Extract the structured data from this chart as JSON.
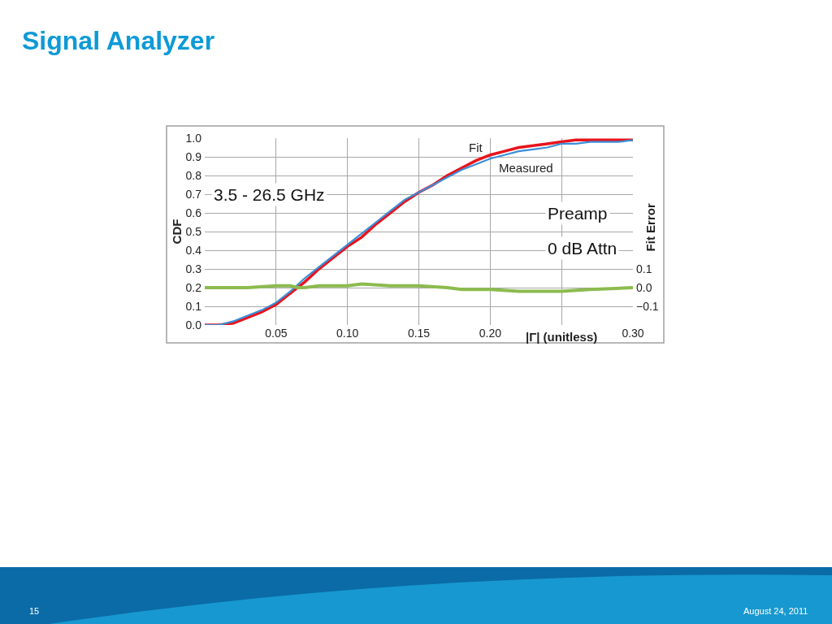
{
  "chart_data": {
    "type": "line",
    "title": "Signal Analyzer",
    "xlabel": "|Γ| (unitless)",
    "ylabel": "CDF",
    "y2label": "Fit Error",
    "annotations": [
      "3.5 - 26.5 GHz",
      "Preamp",
      "0 dB Attn",
      "15",
      "August 24, 2011"
    ],
    "xlim": [
      0,
      0.3
    ],
    "xticks": [
      0.05,
      {
        "value": 0.1,
        "label": "0.10"
      },
      0.15,
      {
        "value": 0.2,
        "label": "0.20"
      },
      {
        "value": 0.25,
        "label": null
      },
      {
        "value": 0.3,
        "label": "0.30"
      }
    ],
    "ylim": [
      0,
      1
    ],
    "yticks": [
      {
        "value": 0,
        "label": "0.0"
      },
      0.1,
      0.2,
      0.3,
      0.4,
      0.5,
      0.6,
      0.7,
      0.8,
      0.9,
      {
        "value": 1,
        "label": "1.0"
      }
    ],
    "y2lim": [
      -0.2,
      0.8
    ],
    "y2ticks": [
      {
        "value": -0.1,
        "label": "−0.1"
      },
      {
        "value": 0,
        "label": "0.0"
      },
      0.1
    ],
    "grid": true,
    "legend": false,
    "marker": "none",
    "line_style": "solid",
    "series": [
      {
        "name": "Fit",
        "color": "#e8141c",
        "x": [
          0,
          0.01,
          0.02,
          0.03,
          0.04,
          0.05,
          0.06,
          0.07,
          0.08,
          0.09,
          0.1,
          0.11,
          0.12,
          0.13,
          0.14,
          0.15,
          0.16,
          0.17,
          0.18,
          0.19,
          0.2,
          0.21,
          0.22,
          0.23,
          0.24,
          0.25,
          0.26,
          0.27,
          0.28,
          0.29,
          0.3
        ],
        "values": [
          0,
          0,
          0.01,
          0.04,
          0.07,
          0.11,
          0.17,
          0.23,
          0.3,
          0.36,
          0.42,
          0.47,
          0.54,
          0.6,
          0.66,
          0.71,
          0.75,
          0.8,
          0.84,
          0.88,
          0.91,
          0.93,
          0.95,
          0.96,
          0.97,
          0.98,
          0.99,
          0.99,
          0.99,
          0.99,
          0.99
        ]
      },
      {
        "name": "Measured",
        "color": "#3b8ed8",
        "x": [
          0,
          0.01,
          0.02,
          0.03,
          0.04,
          0.05,
          0.06,
          0.07,
          0.08,
          0.09,
          0.1,
          0.11,
          0.12,
          0.13,
          0.14,
          0.15,
          0.16,
          0.17,
          0.18,
          0.19,
          0.2,
          0.21,
          0.22,
          0.23,
          0.24,
          0.25,
          0.26,
          0.27,
          0.28,
          0.29,
          0.3
        ],
        "values": [
          0,
          0,
          0.02,
          0.05,
          0.08,
          0.12,
          0.18,
          0.25,
          0.31,
          0.37,
          0.43,
          0.49,
          0.55,
          0.61,
          0.67,
          0.71,
          0.75,
          0.79,
          0.83,
          0.86,
          0.89,
          0.91,
          0.93,
          0.94,
          0.95,
          0.97,
          0.97,
          0.98,
          0.98,
          0.98,
          0.99
        ]
      },
      {
        "color": "#8cbb4e",
        "axis": "y2",
        "x": [
          0,
          0.03,
          0.05,
          0.06,
          0.065,
          0.07,
          0.08,
          0.1,
          0.11,
          0.13,
          0.15,
          0.17,
          0.18,
          0.2,
          0.22,
          0.235,
          0.25,
          0.27,
          0.3
        ],
        "values": [
          0,
          0,
          0.01,
          0.01,
          0,
          0,
          0.01,
          0.01,
          0.02,
          0.01,
          0.01,
          0,
          -0.01,
          -0.01,
          -0.02,
          -0.02,
          -0.02,
          -0.01,
          0
        ]
      }
    ]
  }
}
